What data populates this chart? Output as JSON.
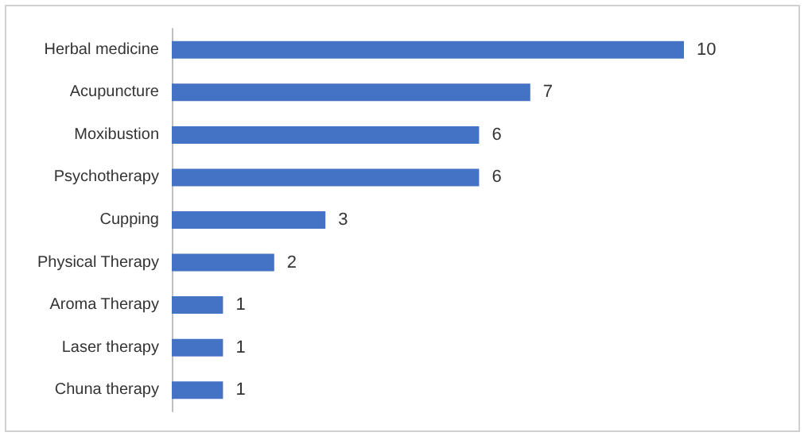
{
  "chart_data": {
    "type": "bar",
    "orientation": "horizontal",
    "categories": [
      "Herbal medicine",
      "Acupuncture",
      "Moxibustion",
      "Psychotherapy",
      "Cupping",
      "Physical Therapy",
      "Aroma Therapy",
      "Laser therapy",
      "Chuna therapy"
    ],
    "values": [
      10,
      7,
      6,
      6,
      3,
      2,
      1,
      1,
      1
    ],
    "color": "#4472c4",
    "data_labels": true
  }
}
